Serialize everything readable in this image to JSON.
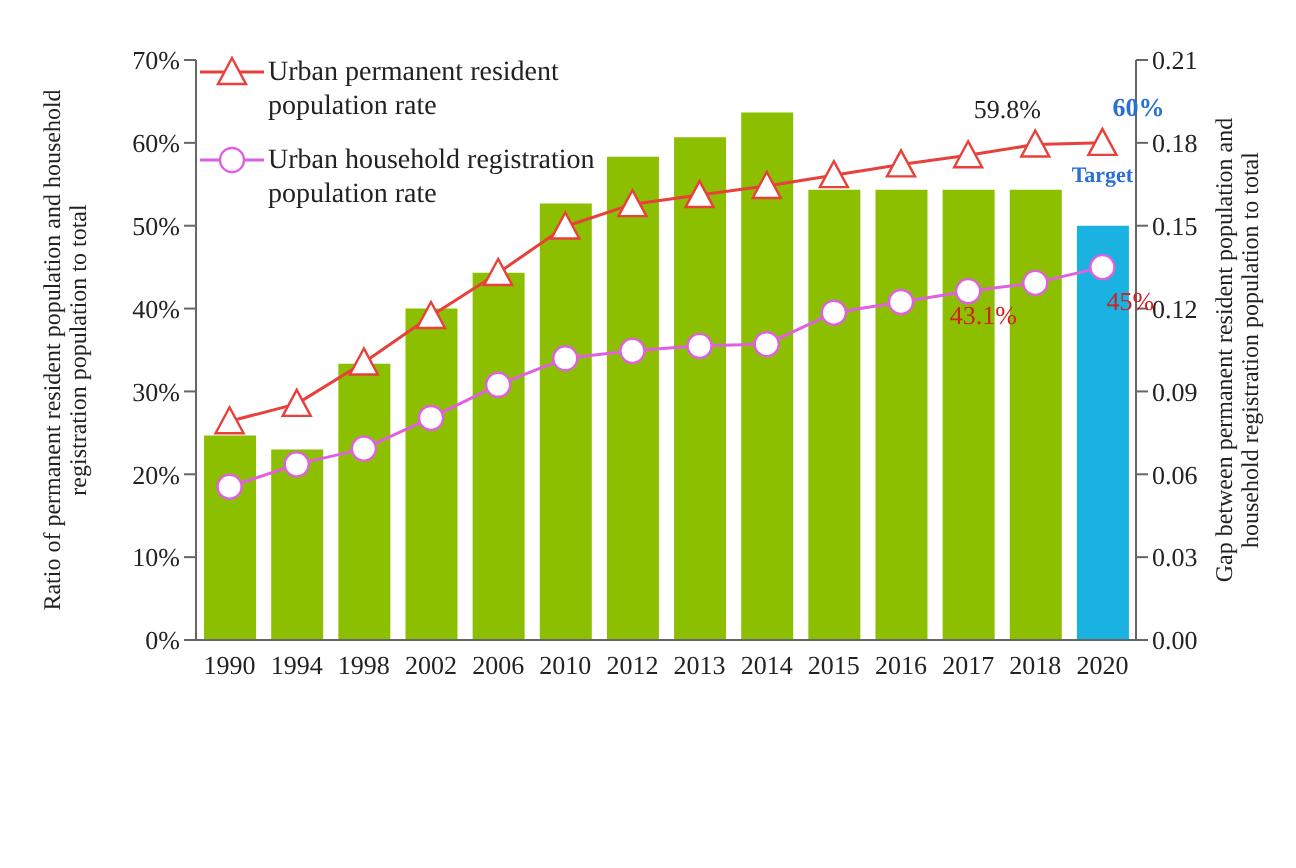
{
  "chart_data": {
    "type": "bar",
    "ylabel": "Ratio of permanent resident population and household registration population to total",
    "y2label": "Gap between permanent resident population and household registration population to total",
    "categories": [
      "1990",
      "1994",
      "1998",
      "2002",
      "2006",
      "2010",
      "2012",
      "2013",
      "2014",
      "2015",
      "2016",
      "2017",
      "2018",
      "2020"
    ],
    "series": [
      {
        "axis": "y2",
        "colors": [
          "#8cbf00",
          "#8cbf00",
          "#8cbf00",
          "#8cbf00",
          "#8cbf00",
          "#8cbf00",
          "#8cbf00",
          "#8cbf00",
          "#8cbf00",
          "#8cbf00",
          "#8cbf00",
          "#8cbf00",
          "#8cbf00",
          "#1ab2e0"
        ],
        "values": [
          0.074,
          0.069,
          0.1,
          0.12,
          0.133,
          0.158,
          0.175,
          0.182,
          0.191,
          0.163,
          0.163,
          0.163,
          0.163,
          0.15
        ]
      },
      {
        "type": "line",
        "name": "Urban permanent resident population rate",
        "color": "#e8403a",
        "marker": "triangle",
        "values": [
          26.4,
          28.5,
          33.5,
          39.1,
          44.3,
          49.9,
          52.6,
          53.7,
          54.8,
          56.1,
          57.4,
          58.5,
          59.8,
          60
        ]
      },
      {
        "type": "line",
        "name": "Urban household registration population rate",
        "color": "#e060e0",
        "marker": "circle",
        "values": [
          18.5,
          21.2,
          23.1,
          26.8,
          30.8,
          34.0,
          34.9,
          35.5,
          35.7,
          39.5,
          40.8,
          42.1,
          43.1,
          45
        ]
      }
    ],
    "ylim": [
      0,
      70
    ],
    "yticks": [
      {
        "value": 0,
        "label": "0%"
      },
      {
        "value": 10,
        "label": "10%"
      },
      {
        "value": 20,
        "label": "20%"
      },
      {
        "value": 30,
        "label": "30%"
      },
      {
        "value": 40,
        "label": "40%"
      },
      {
        "value": 50,
        "label": "50%"
      },
      {
        "value": 60,
        "label": "60%"
      },
      {
        "value": 70,
        "label": "70%"
      }
    ],
    "y2lim": [
      0,
      0.21
    ],
    "y2ticks": [
      {
        "value": 0,
        "label": "0.00"
      },
      {
        "value": 0.03,
        "label": "0.03"
      },
      {
        "value": 0.06,
        "label": "0.06"
      },
      {
        "value": 0.09,
        "label": "0.09"
      },
      {
        "value": 0.12,
        "label": "0.12"
      },
      {
        "value": 0.15,
        "label": "0.15"
      },
      {
        "value": 0.18,
        "label": "0.18"
      },
      {
        "value": 0.21,
        "label": "0.21"
      }
    ],
    "annotations": [
      {
        "text": "59.8%",
        "x": "2018",
        "y": 59.8
      },
      {
        "text": "60%",
        "x": "2020",
        "y": 60
      },
      "Target",
      {
        "text": "43.1%",
        "x": "2018",
        "y": 43.1
      },
      {
        "text": "45%",
        "x": "2020",
        "y": 45
      }
    ],
    "legend": "top left",
    "grid": false
  }
}
